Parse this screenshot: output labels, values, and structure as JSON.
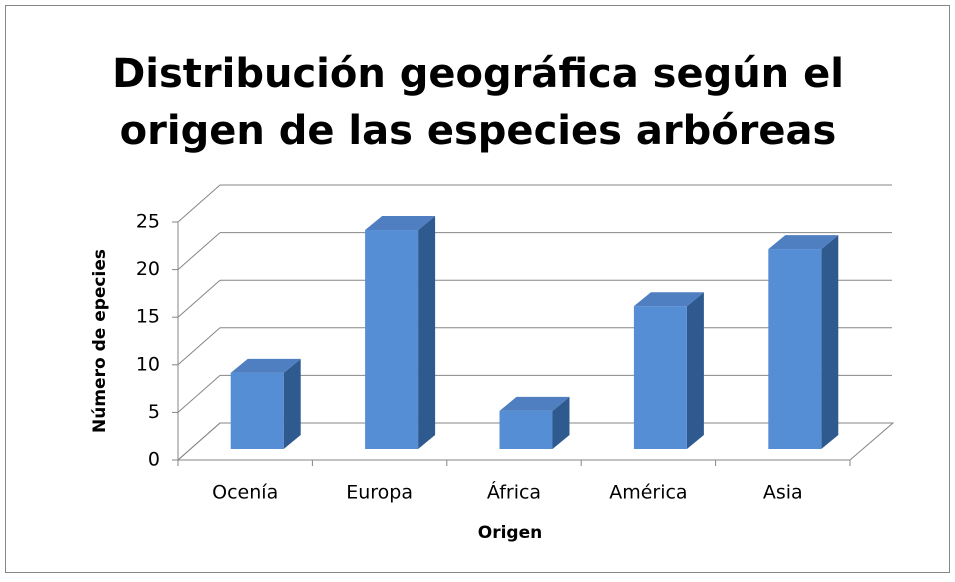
{
  "chart_data": {
    "type": "bar3d",
    "title": [
      "Distribución geográfica según el",
      "origen de las especies arbóreas"
    ],
    "x_label": "Origen",
    "y_label": "Número de epecies",
    "categories": [
      "Ocenía",
      "Europa",
      "África",
      "América",
      "Asia"
    ],
    "values": [
      8,
      23,
      4,
      15,
      21
    ],
    "color": "#558ed5",
    "ylim": [
      0,
      25
    ],
    "yticks": [
      0,
      5,
      10,
      15,
      20,
      25
    ],
    "grid": true
  }
}
